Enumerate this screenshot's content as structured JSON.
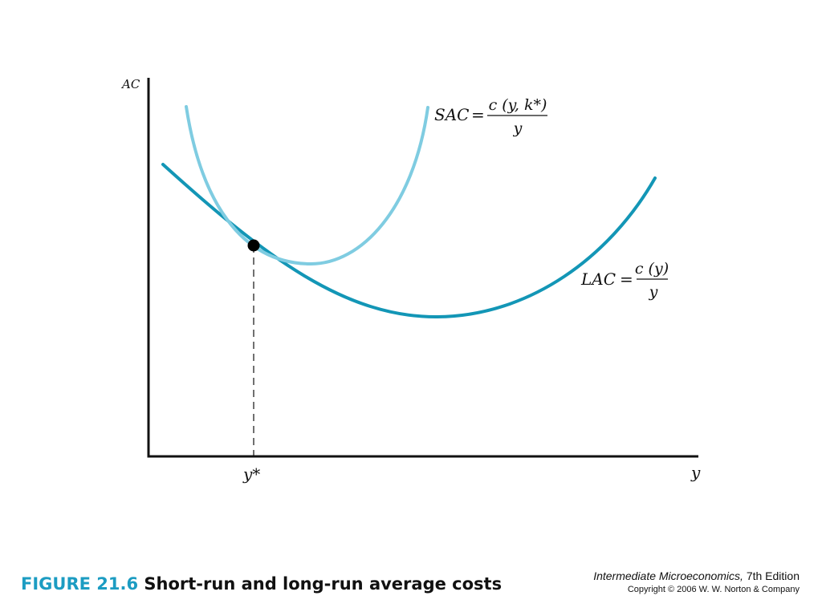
{
  "figure": {
    "number": "FIGURE 21.6",
    "title": "Short-run and long-run average costs"
  },
  "book": {
    "title": "Intermediate Microeconomics,",
    "edition": " 7th Edition",
    "copyright": "Copyright © 2006 W. W. Norton & Company"
  },
  "axes": {
    "y_label": "AC",
    "x_label": "y",
    "x_tick": "y*"
  },
  "curves": {
    "sac": {
      "name": "SAC",
      "equals": "=",
      "numerator": "c (y, k*)",
      "denominator": "y",
      "color": "#7fcce1"
    },
    "lac": {
      "name": "LAC",
      "equals": "=",
      "numerator": "c (y)",
      "denominator": "y",
      "color": "#1396b6"
    }
  },
  "tangency_point_color": "#000000"
}
